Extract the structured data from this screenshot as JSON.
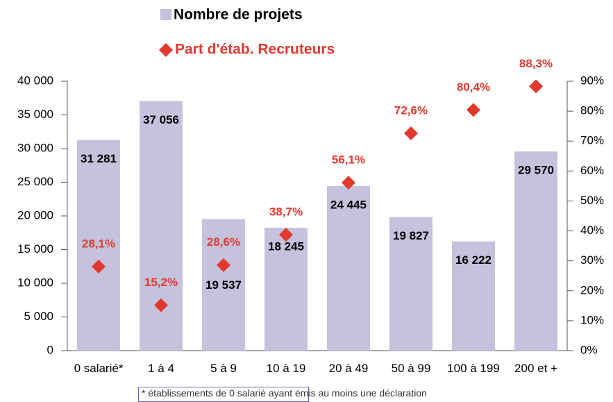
{
  "chart_data": {
    "type": "bar",
    "categories": [
      "0 salarié*",
      "1 à 4",
      "5 à 9",
      "10 à 19",
      "20 à 49",
      "50 à 99",
      "100 à 199",
      "200 et +"
    ],
    "series": [
      {
        "name": "Nombre de projets",
        "color": "#c5c2dd",
        "values": [
          31281,
          37056,
          19537,
          18245,
          24445,
          19827,
          16222,
          29570
        ],
        "value_labels": [
          "31 281",
          "37 056",
          "19 537",
          "18 245",
          "24 445",
          "19 827",
          "16 222",
          "29 570"
        ]
      },
      {
        "name": "Part d'étab. Recruteurs",
        "color": "#e2392f",
        "axis": "y2",
        "values": [
          28.1,
          15.2,
          28.6,
          38.7,
          56.1,
          72.6,
          80.4,
          88.3
        ],
        "value_labels": [
          "28,1%",
          "15,2%",
          "28,6%",
          "38,7%",
          "56,1%",
          "72,6%",
          "80,4%",
          "88,3%"
        ]
      }
    ],
    "ylim": [
      0,
      40000
    ],
    "yticks": [
      0,
      {
        "value": 5000,
        "label": "5 000"
      },
      {
        "value": 10000,
        "label": "10 000"
      },
      {
        "value": 15000,
        "label": "15 000"
      },
      {
        "value": 20000,
        "label": "20 000"
      },
      {
        "value": 25000,
        "label": "25 000"
      },
      {
        "value": 30000,
        "label": "30 000"
      },
      {
        "value": 35000,
        "label": "35 000"
      },
      {
        "value": 40000,
        "label": "40 000"
      }
    ],
    "y2lim": [
      0,
      90
    ],
    "y2ticks": [
      {
        "value": 0,
        "label": "0%"
      },
      {
        "value": 10,
        "label": "10%"
      },
      {
        "value": 20,
        "label": "20%"
      },
      {
        "value": 30,
        "label": "30%"
      },
      {
        "value": 40,
        "label": "40%"
      },
      {
        "value": 50,
        "label": "50%"
      },
      {
        "value": 60,
        "label": "60%"
      },
      {
        "value": 70,
        "label": "70%"
      },
      {
        "value": 80,
        "label": "80%"
      },
      {
        "value": 90,
        "label": "90%"
      }
    ],
    "legend": "top",
    "footnote": "* établissements de 0 salarié ayant émis au moins une déclaration"
  }
}
